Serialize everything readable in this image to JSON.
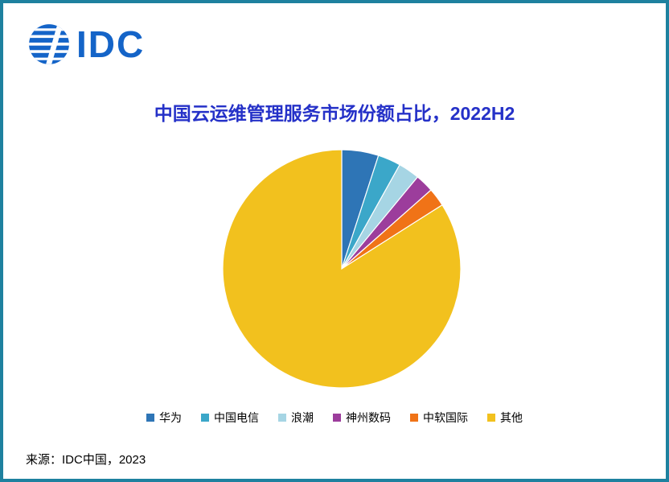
{
  "logo": {
    "text": "IDC"
  },
  "title": "中国云运维管理服务市场份额占比，2022H2",
  "source": "来源：IDC中国，2023",
  "colors": {
    "frame_border": "#1E819F",
    "logo_blue": "#1464C8",
    "title_blue": "#2531C8"
  },
  "chart_data": {
    "type": "pie",
    "title": "中国云运维管理服务市场份额占比，2022H2",
    "categories": [
      "华为",
      "中国电信",
      "浪潮",
      "神州数码",
      "中软国际",
      "其他"
    ],
    "values": [
      5.0,
      3.1,
      2.9,
      2.5,
      2.5,
      84.0
    ],
    "colors": [
      "#2E75B6",
      "#3BA7C9",
      "#A6D5E4",
      "#9C3D9C",
      "#F07317",
      "#F2C11E"
    ],
    "start_angle_deg": 0,
    "direction": "clockwise",
    "legend_position": "bottom",
    "source_note": "来源：IDC中国，2023"
  }
}
